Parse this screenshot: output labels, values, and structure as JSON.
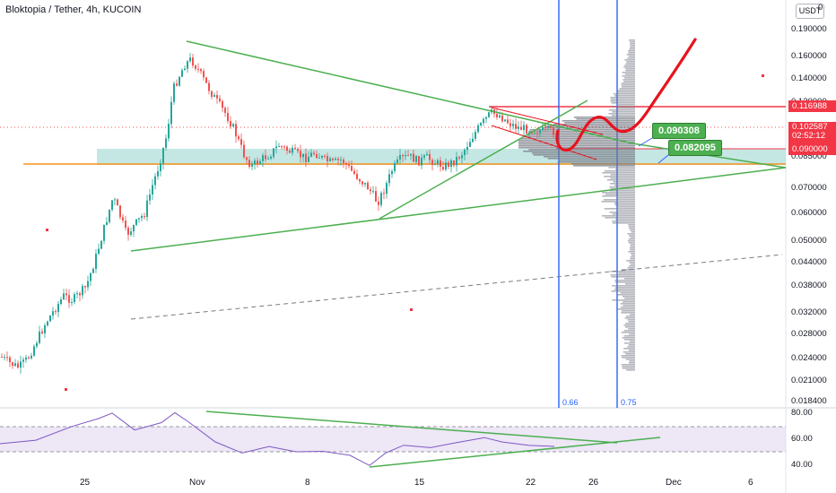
{
  "header": {
    "symbol": "Bloktopia / Tether, 4h, KUCOIN",
    "currency_button": "USDT",
    "top_tick": "0"
  },
  "price_axis": {
    "ticks": [
      "0.190000",
      "0.160000",
      "0.140000",
      "0.120000",
      "0.085000",
      "0.070000",
      "0.060000",
      "0.050000",
      "0.044000",
      "0.038000",
      "0.032000",
      "0.028000",
      "0.024000",
      "0.021000",
      "0.018400"
    ],
    "tag_resistance": "0.116988",
    "tag_last_price": "0.102587",
    "tag_countdown": "02:52:12",
    "tag_support": "0.090000"
  },
  "time_axis": {
    "labels": [
      "25",
      "Nov",
      "8",
      "15",
      "22",
      "26",
      "Dec",
      "6"
    ]
  },
  "rsi_axis": {
    "ticks": [
      "80.00",
      "60.00",
      "40.00"
    ]
  },
  "fib_labels": {
    "left": "0.66",
    "right": "0.75"
  },
  "callouts": {
    "upper": "0.090308",
    "lower": "0.082095"
  },
  "colors": {
    "up": "#26a69a",
    "down": "#ef5350",
    "trend": "#4caf50",
    "projection": "#e8131e",
    "fib": "#2962ff",
    "horizontal": "#f7931a",
    "zone": "#b2dfdb",
    "rsi": "#7e57c2"
  }
}
